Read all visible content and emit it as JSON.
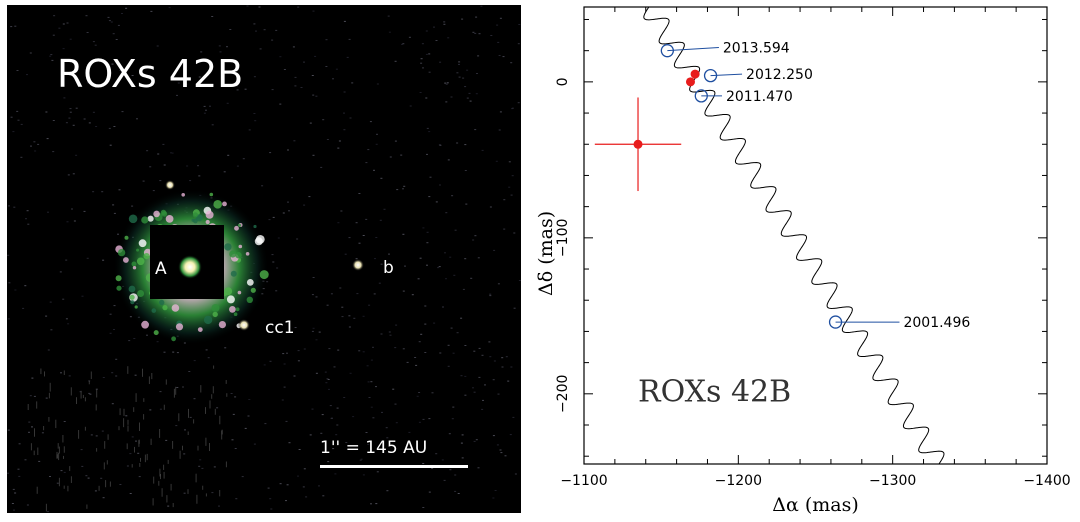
{
  "image_panel": {
    "title": "ROXs 42B",
    "label_a": "A",
    "label_b": "b",
    "label_cc1": "cc1",
    "scale_bar_label": "1'' = 145 AU",
    "colors": {
      "background": "#000000",
      "halo_green": "#2f8f3a",
      "halo_pink": "#e7b3d6",
      "text": "#ffffff"
    }
  },
  "chart_data": {
    "type": "scatter",
    "title": "ROXs 42B",
    "xlabel": "Δα (mas)",
    "ylabel": "Δδ (mas)",
    "xlim": [
      -1100,
      -1400
    ],
    "ylim": [
      -245,
      48
    ],
    "x_ticks": [
      -1100,
      -1200,
      -1300,
      -1400
    ],
    "y_ticks": [
      0,
      -100,
      -200
    ],
    "x_minor_step": 20,
    "y_minor_step": 20,
    "grid": false,
    "epochs": [
      {
        "label": "2013.594",
        "x": -1154,
        "y": 20,
        "label_x": -1190,
        "label_y": 22
      },
      {
        "label": "2012.250",
        "x": -1182,
        "y": 4,
        "label_x": -1205,
        "label_y": 5
      },
      {
        "label": "2011.470",
        "x": -1176,
        "y": -9,
        "label_x": -1192,
        "label_y": -9
      },
      {
        "label": "2001.496",
        "x": -1263,
        "y": -154,
        "label_x": -1307,
        "label_y": -154
      }
    ],
    "measurements": [
      {
        "x": -1172,
        "y": 5
      },
      {
        "x": -1169,
        "y": 0
      },
      {
        "x": -1135,
        "y": -40,
        "x_err": 28,
        "y_err": 30
      }
    ],
    "background_track": {
      "start": [
        -1142,
        48
      ],
      "end": [
        -1330,
        -245
      ],
      "wobble_amplitude": 6.5,
      "wobble_cycles": 19
    },
    "colors": {
      "track": "#000000",
      "epoch_marker": "#1f4fa0",
      "measurement": "#e81c1c",
      "frame": "#000000"
    }
  }
}
